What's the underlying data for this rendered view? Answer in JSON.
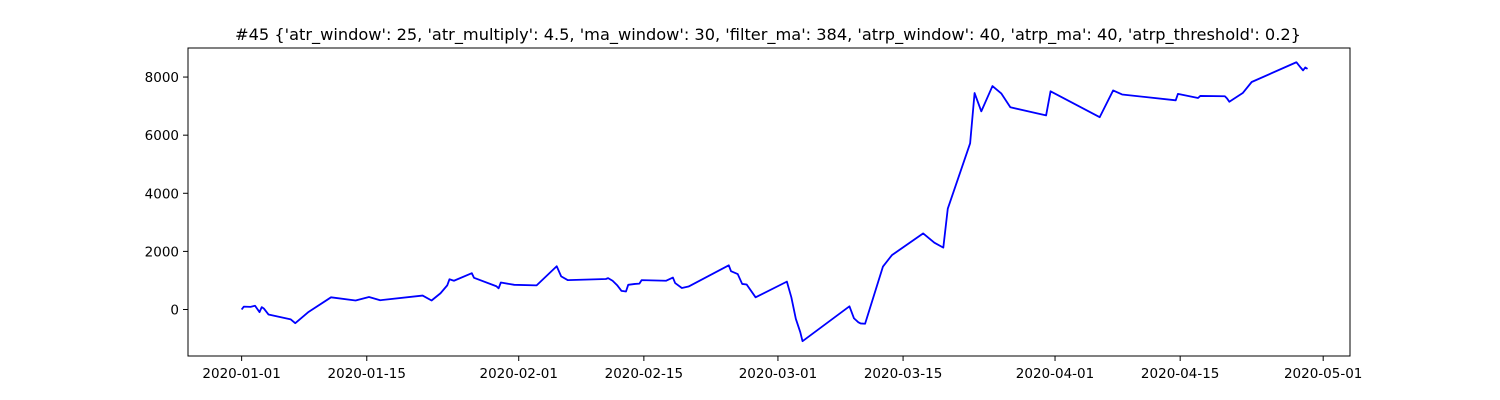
{
  "chart_data": {
    "type": "line",
    "title": "#45 {'atr_window': 25, 'atr_multiply': 4.5, 'ma_window': 30, 'filter_ma': 384, 'atrp_window': 40, 'atrp_ma': 40, 'atrp_threshold': 0.2}",
    "xlabel": "",
    "ylabel": "",
    "x_axis_type": "date",
    "xlim": [
      "2019-12-26",
      "2020-05-04"
    ],
    "ylim": [
      -1600,
      9000
    ],
    "x_ticks": [
      "2020-01-01",
      "2020-01-15",
      "2020-02-01",
      "2020-02-15",
      "2020-03-01",
      "2020-03-15",
      "2020-04-01",
      "2020-04-15",
      "2020-05-01"
    ],
    "x_tick_labels": [
      "2020-01-01",
      "2020-01-15",
      "2020-02-01",
      "2020-02-15",
      "2020-03-01",
      "2020-03-15",
      "2020-04-01",
      "2020-04-15",
      "2020-05-01"
    ],
    "y_ticks": [
      0,
      2000,
      4000,
      6000,
      8000
    ],
    "y_tick_labels": [
      "0",
      "2000",
      "4000",
      "6000",
      "8000"
    ],
    "grid": false,
    "legend": false,
    "series": [
      {
        "color": "#0000ff",
        "points": [
          [
            "2020-01-01",
            0
          ],
          [
            "2020-01-01T06:00",
            100
          ],
          [
            "2020-01-02",
            90
          ],
          [
            "2020-01-02T12:00",
            130
          ],
          [
            "2020-01-03",
            -90
          ],
          [
            "2020-01-03T06:00",
            80
          ],
          [
            "2020-01-03T12:00",
            30
          ],
          [
            "2020-01-04",
            -170
          ],
          [
            "2020-01-06T12:00",
            -340
          ],
          [
            "2020-01-07",
            -470
          ],
          [
            "2020-01-08T12:00",
            -80
          ],
          [
            "2020-01-11",
            420
          ],
          [
            "2020-01-13T18:00",
            310
          ],
          [
            "2020-01-15T06:00",
            430
          ],
          [
            "2020-01-16T12:00",
            320
          ],
          [
            "2020-01-21T06:00",
            480
          ],
          [
            "2020-01-22T06:00",
            310
          ],
          [
            "2020-01-23T06:00",
            560
          ],
          [
            "2020-01-24",
            830
          ],
          [
            "2020-01-24T06:00",
            1040
          ],
          [
            "2020-01-24T18:00",
            990
          ],
          [
            "2020-01-26T18:00",
            1250
          ],
          [
            "2020-01-27",
            1090
          ],
          [
            "2020-01-29T12:00",
            800
          ],
          [
            "2020-01-29T18:00",
            730
          ],
          [
            "2020-01-30",
            930
          ],
          [
            "2020-01-31T12:00",
            850
          ],
          [
            "2020-02-03",
            830
          ],
          [
            "2020-02-05T06:00",
            1490
          ],
          [
            "2020-02-05T18:00",
            1140
          ],
          [
            "2020-02-06T12:00",
            1010
          ],
          [
            "2020-02-10T18:00",
            1050
          ],
          [
            "2020-02-11",
            1080
          ],
          [
            "2020-02-11T12:00",
            990
          ],
          [
            "2020-02-12",
            840
          ],
          [
            "2020-02-12T12:00",
            640
          ],
          [
            "2020-02-13",
            620
          ],
          [
            "2020-02-13T06:00",
            850
          ],
          [
            "2020-02-14",
            880
          ],
          [
            "2020-02-14T12:00",
            890
          ],
          [
            "2020-02-14T18:00",
            1010
          ],
          [
            "2020-02-17T12:00",
            990
          ],
          [
            "2020-02-18T06:00",
            1100
          ],
          [
            "2020-02-18T12:00",
            910
          ],
          [
            "2020-02-19T06:00",
            740
          ],
          [
            "2020-02-20",
            790
          ],
          [
            "2020-02-24T12:00",
            1520
          ],
          [
            "2020-02-24T18:00",
            1320
          ],
          [
            "2020-02-25T12:00",
            1220
          ],
          [
            "2020-02-26",
            880
          ],
          [
            "2020-02-26T12:00",
            860
          ],
          [
            "2020-02-27T12:00",
            420
          ],
          [
            "2020-03-02",
            960
          ],
          [
            "2020-03-02T12:00",
            420
          ],
          [
            "2020-03-03",
            -320
          ],
          [
            "2020-03-03T12:00",
            -780
          ],
          [
            "2020-03-03T18:00",
            -1090
          ],
          [
            "2020-03-09",
            110
          ],
          [
            "2020-03-09T12:00",
            -300
          ],
          [
            "2020-03-10",
            -440
          ],
          [
            "2020-03-10T06:00",
            -480
          ],
          [
            "2020-03-10T18:00",
            -490
          ],
          [
            "2020-03-12T18:00",
            1480
          ],
          [
            "2020-03-13T18:00",
            1870
          ],
          [
            "2020-03-17T06:00",
            2620
          ],
          [
            "2020-03-18T12:00",
            2300
          ],
          [
            "2020-03-19T12:00",
            2130
          ],
          [
            "2020-03-20",
            3470
          ],
          [
            "2020-03-22T12:00",
            5720
          ],
          [
            "2020-03-23",
            7450
          ],
          [
            "2020-03-23T18:00",
            6820
          ],
          [
            "2020-03-25",
            7690
          ],
          [
            "2020-03-26",
            7430
          ],
          [
            "2020-03-27",
            6960
          ],
          [
            "2020-03-30",
            6750
          ],
          [
            "2020-03-31",
            6680
          ],
          [
            "2020-03-31T12:00",
            7510
          ],
          [
            "2020-04-06",
            6620
          ],
          [
            "2020-04-07T12:00",
            7540
          ],
          [
            "2020-04-08T12:00",
            7400
          ],
          [
            "2020-04-14T12:00",
            7200
          ],
          [
            "2020-04-14T18:00",
            7420
          ],
          [
            "2020-04-17",
            7280
          ],
          [
            "2020-04-17T06:00",
            7350
          ],
          [
            "2020-04-20",
            7340
          ],
          [
            "2020-04-20T06:00",
            7260
          ],
          [
            "2020-04-20T12:00",
            7150
          ],
          [
            "2020-04-22",
            7450
          ],
          [
            "2020-04-23",
            7830
          ],
          [
            "2020-04-28",
            8510
          ],
          [
            "2020-04-28T12:00",
            8320
          ],
          [
            "2020-04-28T18:00",
            8230
          ],
          [
            "2020-04-29",
            8330
          ],
          [
            "2020-04-29T06:00",
            8280
          ]
        ]
      }
    ]
  }
}
